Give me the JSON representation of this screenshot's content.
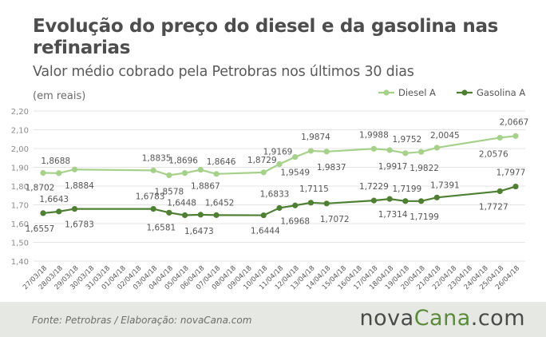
{
  "header": {
    "title": "Evolução do preço do diesel e da gasolina nas refinarias",
    "subtitle": "Valor médio cobrado pela Petrobras nos últimos 30 dias",
    "unit_note": "(em reais)"
  },
  "footer": {
    "source": "Fonte:  Petrobras  / Elaboração:  novaCana.com",
    "logo_main": "nova",
    "logo_accent": "Cana",
    "logo_tail": ".com"
  },
  "colors": {
    "diesel": "#a6d18a",
    "gasolina": "#4e7f32",
    "grid": "#e4e4e4",
    "text": "#555555"
  },
  "chart_data": {
    "type": "line",
    "categories": [
      "27/03/18",
      "28/03/18",
      "29/03/18",
      "30/03/18",
      "31/03/18",
      "01/04/18",
      "02/04/18",
      "03/04/18",
      "04/04/18",
      "05/04/18",
      "06/04/18",
      "07/04/18",
      "08/04/18",
      "09/04/18",
      "10/04/18",
      "11/04/18",
      "12/04/18",
      "13/04/18",
      "14/04/18",
      "15/04/18",
      "16/04/18",
      "17/04/18",
      "18/04/18",
      "19/04/18",
      "20/04/18",
      "21/04/18",
      "22/04/18",
      "23/04/18",
      "24/04/18",
      "25/04/18",
      "26/04/18"
    ],
    "ylim": [
      1.4,
      2.2
    ],
    "yticks": [
      "2,20",
      "2,10",
      "2,00",
      "1,90",
      "1,80",
      "1,70",
      "1,60",
      "1,50",
      "1,40"
    ],
    "legend_position": "top-right",
    "grid": true,
    "series": [
      {
        "name": "Diesel A",
        "points": [
          {
            "i": 0,
            "v": 1.8702,
            "label": "1,8702"
          },
          {
            "i": 1,
            "v": 1.8688,
            "label": "1,8688"
          },
          {
            "i": 2,
            "v": 1.8884,
            "label": "1,8884"
          },
          {
            "i": 7,
            "v": 1.8835,
            "label": "1,8835"
          },
          {
            "i": 8,
            "v": 1.8578,
            "label": "1,8578"
          },
          {
            "i": 9,
            "v": 1.8696,
            "label": "1,8696"
          },
          {
            "i": 10,
            "v": 1.8867,
            "label": "1,8867"
          },
          {
            "i": 11,
            "v": 1.8646,
            "label": "1,8646"
          },
          {
            "i": 14,
            "v": 1.8729,
            "label": "1,8729"
          },
          {
            "i": 15,
            "v": 1.9169,
            "label": "1,9169"
          },
          {
            "i": 16,
            "v": 1.9549,
            "label": "1,9549"
          },
          {
            "i": 17,
            "v": 1.9874,
            "label": "1,9874"
          },
          {
            "i": 18,
            "v": 1.9837,
            "label": "1,9837"
          },
          {
            "i": 21,
            "v": 1.9988,
            "label": "1,9988"
          },
          {
            "i": 22,
            "v": 1.9917,
            "label": "1,9917"
          },
          {
            "i": 23,
            "v": 1.9752,
            "label": "1,9752"
          },
          {
            "i": 24,
            "v": 1.9822,
            "label": "1,9822"
          },
          {
            "i": 25,
            "v": 2.0045,
            "label": "2,0045"
          },
          {
            "i": 29,
            "v": 2.0576,
            "label": "2,0576"
          },
          {
            "i": 30,
            "v": 2.0667,
            "label": "2,0667"
          }
        ]
      },
      {
        "name": "Gasolina A",
        "points": [
          {
            "i": 0,
            "v": 1.6557,
            "label": "1,6557"
          },
          {
            "i": 1,
            "v": 1.6643,
            "label": "1,6643"
          },
          {
            "i": 2,
            "v": 1.6783,
            "label": "1,6783"
          },
          {
            "i": 7,
            "v": 1.6783,
            "label": "1,6783"
          },
          {
            "i": 8,
            "v": 1.6581,
            "label": "1,6581"
          },
          {
            "i": 9,
            "v": 1.6448,
            "label": "1,6448"
          },
          {
            "i": 10,
            "v": 1.6473,
            "label": "1,6473"
          },
          {
            "i": 11,
            "v": 1.6452,
            "label": "1,6452"
          },
          {
            "i": 14,
            "v": 1.6444,
            "label": "1,6444"
          },
          {
            "i": 15,
            "v": 1.6833,
            "label": "1,6833"
          },
          {
            "i": 16,
            "v": 1.6968,
            "label": "1,6968"
          },
          {
            "i": 17,
            "v": 1.7115,
            "label": "1,7115"
          },
          {
            "i": 18,
            "v": 1.7072,
            "label": "1,7072"
          },
          {
            "i": 21,
            "v": 1.7229,
            "label": "1,7229"
          },
          {
            "i": 22,
            "v": 1.7314,
            "label": "1,7314"
          },
          {
            "i": 23,
            "v": 1.7199,
            "label": "1,7199"
          },
          {
            "i": 24,
            "v": 1.7199,
            "label": "1,7199"
          },
          {
            "i": 25,
            "v": 1.7391,
            "label": "1,7391"
          },
          {
            "i": 29,
            "v": 1.7727,
            "label": "1,7727"
          },
          {
            "i": 30,
            "v": 1.7977,
            "label": "1,7977"
          }
        ]
      }
    ]
  }
}
